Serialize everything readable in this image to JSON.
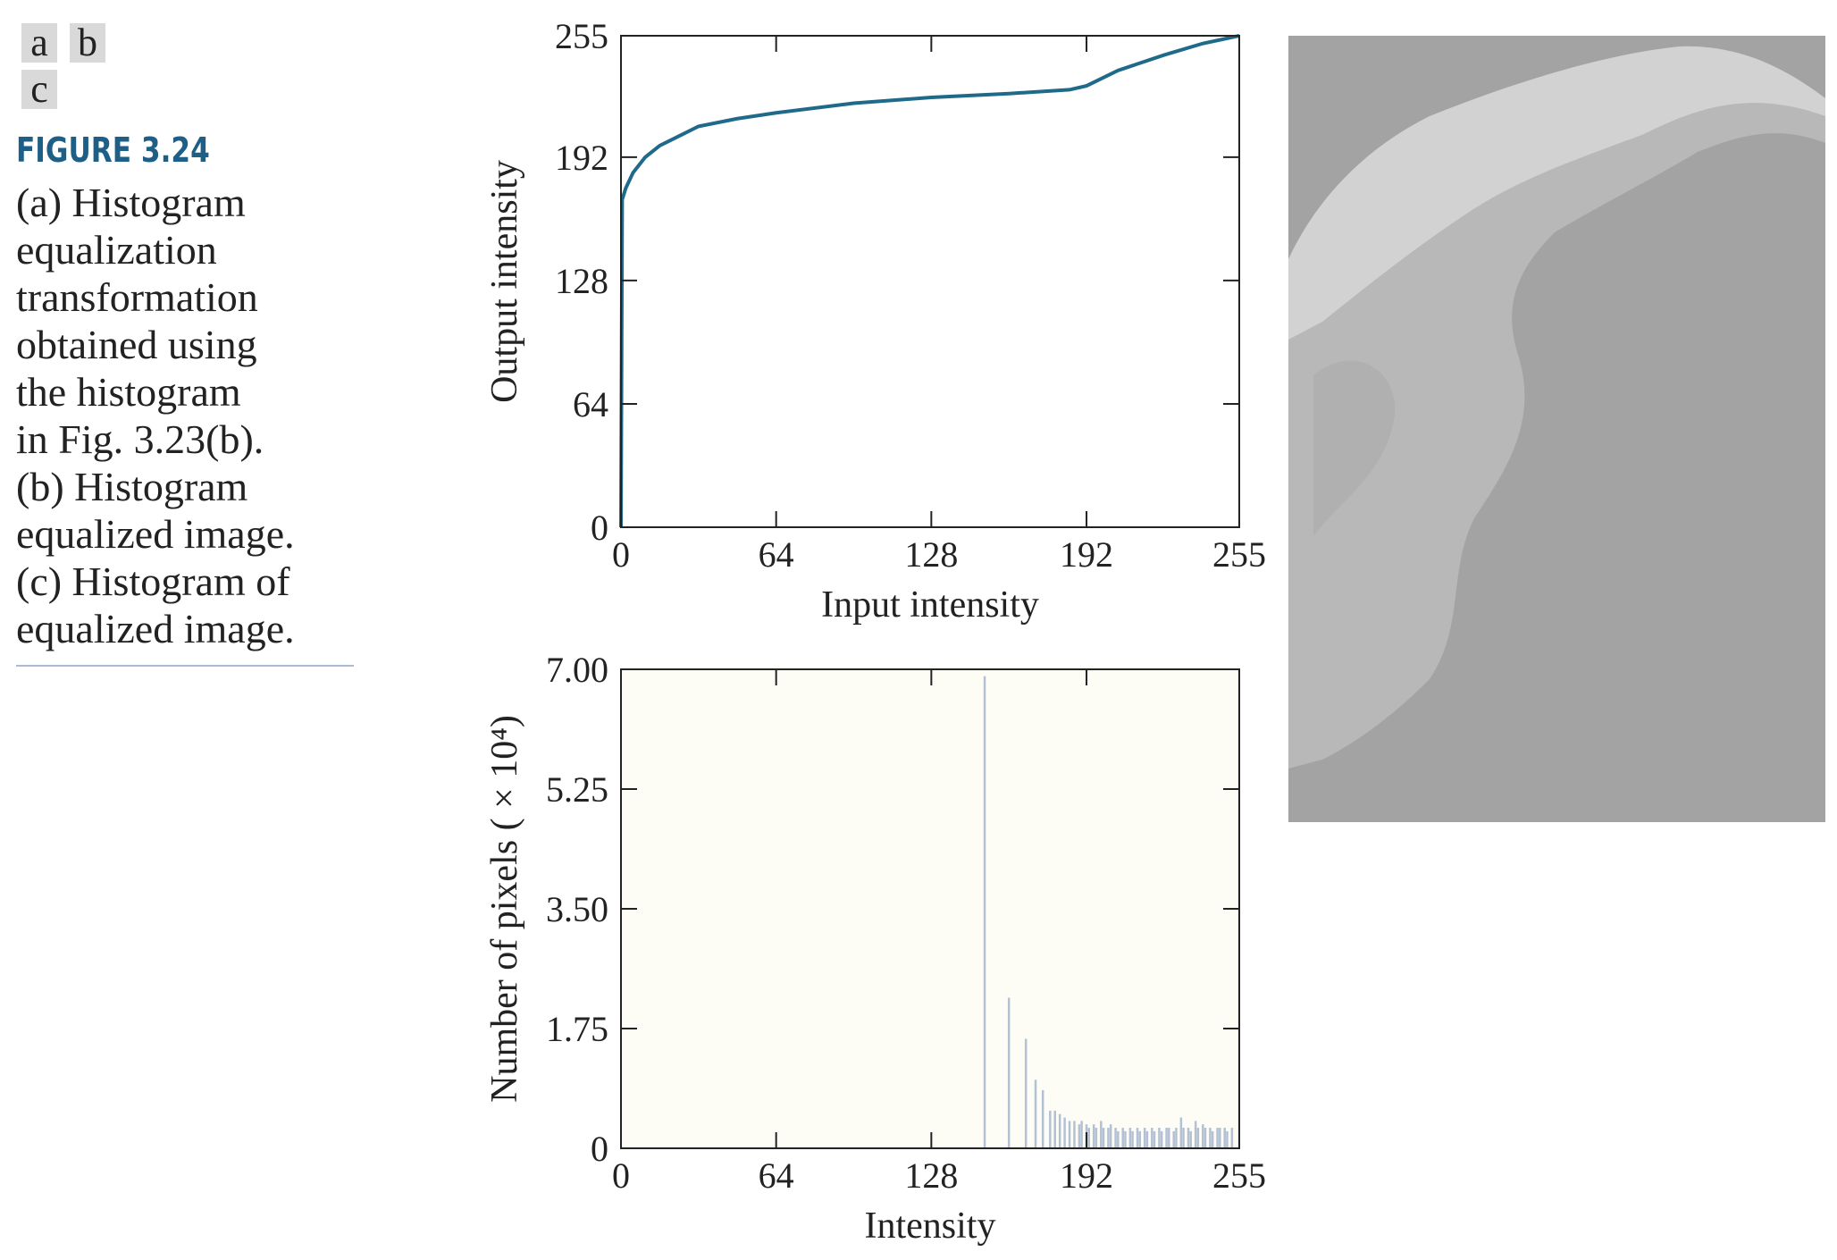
{
  "figure": {
    "panel_labels": [
      "a",
      "b",
      "c"
    ],
    "label": "FIGURE 3.24",
    "caption_lines": [
      "(a) Histogram",
      "equalization",
      "transformation",
      "obtained using",
      "the histogram",
      "in Fig. 3.23(b).",
      "(b) Histogram",
      "equalized image.",
      "(c) Histogram of",
      "equalized image."
    ]
  },
  "chart_data": [
    {
      "type": "line",
      "xlabel": "Input intensity",
      "ylabel": "Output intensity",
      "color": "#1f6a8a",
      "x": [
        0,
        0.5,
        2,
        5,
        10,
        16,
        32,
        48,
        64,
        96,
        128,
        160,
        185,
        192,
        205,
        224,
        240,
        255
      ],
      "values": [
        0,
        170,
        176,
        184,
        192,
        198,
        208,
        212,
        215,
        220,
        223,
        225,
        227,
        229,
        237,
        245,
        251,
        255
      ],
      "xlim": [
        0,
        255
      ],
      "ylim": [
        0,
        255
      ],
      "xticks": [
        0,
        64,
        128,
        192,
        255
      ],
      "yticks": [
        0,
        64,
        128,
        192,
        255
      ]
    },
    {
      "type": "stem",
      "xlabel": "Intensity",
      "ylabel": "Number of pixels ( × 10⁴)",
      "color": "#b4c0d4",
      "x": [
        150,
        160,
        167,
        171,
        174,
        177,
        179,
        181,
        183,
        185,
        187,
        189,
        190,
        192,
        193,
        195,
        196,
        198,
        199,
        201,
        202,
        204,
        205,
        207,
        208,
        210,
        211,
        213,
        214,
        216,
        217,
        219,
        220,
        222,
        223,
        225,
        226,
        228,
        229,
        231,
        232,
        234,
        235,
        237,
        238,
        240,
        241,
        243,
        244,
        246,
        247,
        249,
        250,
        252
      ],
      "values": [
        6.9,
        2.2,
        1.6,
        1.0,
        0.85,
        0.55,
        0.55,
        0.5,
        0.45,
        0.4,
        0.4,
        0.35,
        0.4,
        0.35,
        0.3,
        0.35,
        0.3,
        0.4,
        0.3,
        0.3,
        0.35,
        0.3,
        0.25,
        0.3,
        0.25,
        0.3,
        0.25,
        0.3,
        0.25,
        0.3,
        0.25,
        0.3,
        0.25,
        0.3,
        0.25,
        0.3,
        0.3,
        0.25,
        0.3,
        0.45,
        0.3,
        0.3,
        0.25,
        0.4,
        0.3,
        0.35,
        0.3,
        0.3,
        0.25,
        0.3,
        0.3,
        0.3,
        0.25,
        0.3
      ],
      "xlim": [
        0,
        255
      ],
      "ylim": [
        0,
        7
      ],
      "xticks": [
        0,
        64,
        128,
        192,
        255
      ],
      "yticks": [
        0,
        {
          "value": 1.75,
          "label": "1.75"
        },
        {
          "value": 3.5,
          "label": "3.50"
        },
        {
          "value": 5.25,
          "label": "5.25"
        },
        {
          "value": 7,
          "label": "7.00"
        }
      ]
    }
  ]
}
